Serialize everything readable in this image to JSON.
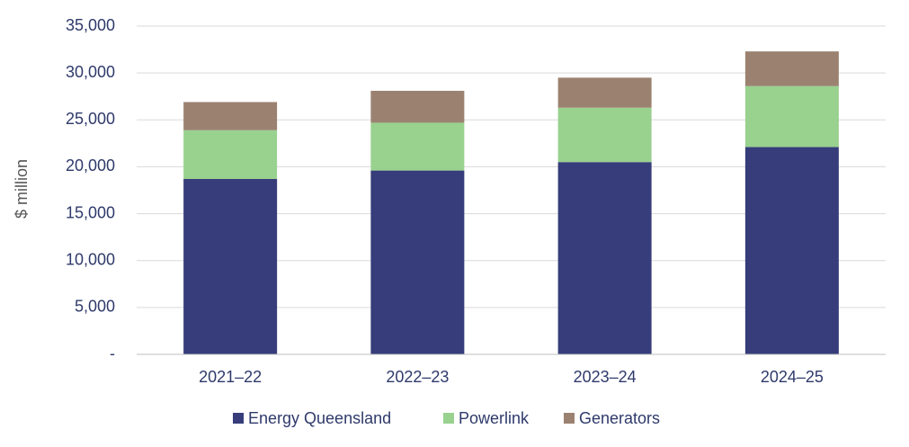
{
  "chart_data": {
    "type": "stacked_bar",
    "y_label": "$ million",
    "categories": [
      "2021–22",
      "2022–23",
      "2023–24",
      "2024–25"
    ],
    "series": [
      {
        "name": "Energy Queensland",
        "color": "#363d7a",
        "values": [
          18700,
          19600,
          20500,
          22100
        ]
      },
      {
        "name": "Powerlink",
        "color": "#99d18f",
        "values": [
          5200,
          5100,
          5800,
          6500
        ]
      },
      {
        "name": "Generators",
        "color": "#9b8270",
        "values": [
          3000,
          3400,
          3200,
          3700
        ]
      }
    ],
    "ylim": [
      0,
      35000
    ],
    "yticks": [
      {
        "value": 0,
        "label": "-"
      },
      {
        "value": 5000,
        "label": "5,000"
      },
      {
        "value": 10000,
        "label": "10,000"
      },
      {
        "value": 15000,
        "label": "15,000"
      },
      {
        "value": 20000,
        "label": "20,000"
      },
      {
        "value": 25000,
        "label": "25,000"
      },
      {
        "value": 30000,
        "label": "30,000"
      },
      {
        "value": 35000,
        "label": "35,000"
      }
    ],
    "grid": true,
    "legend": "bottom"
  }
}
